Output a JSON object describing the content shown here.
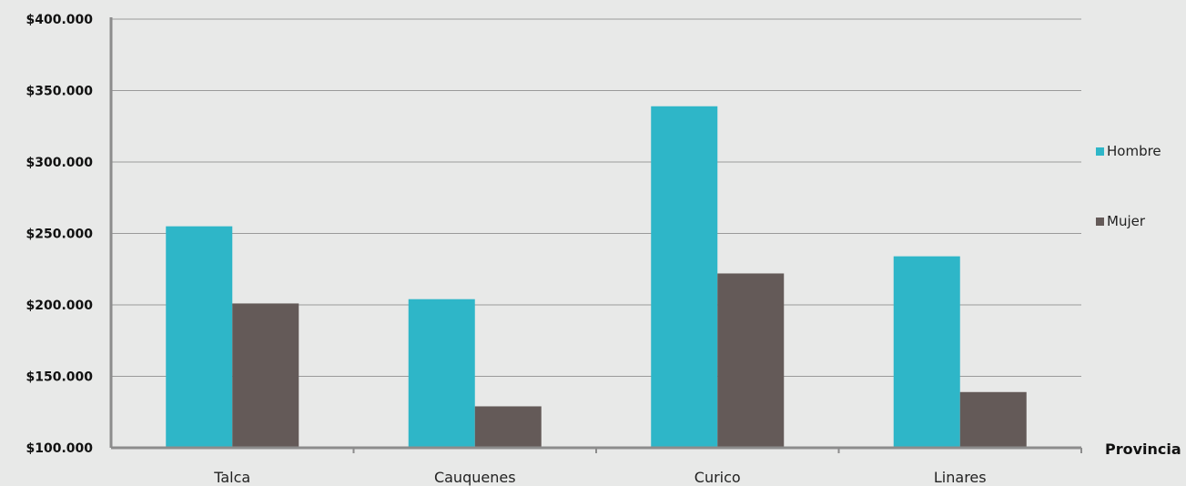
{
  "chart_data": {
    "type": "bar",
    "categories": [
      "Talca",
      "Cauquenes",
      "Curico",
      "Linares"
    ],
    "series": [
      {
        "name": "Hombre",
        "values": [
          255000,
          204000,
          339000,
          234000
        ],
        "color": "#2eb6c8"
      },
      {
        "name": "Mujer",
        "values": [
          201000,
          129000,
          222000,
          139000
        ],
        "color": "#645a58"
      }
    ],
    "ylim": [
      100000,
      400000
    ],
    "yticks": [
      100000,
      150000,
      200000,
      250000,
      300000,
      350000,
      400000
    ],
    "ytick_labels": [
      "$100.000",
      "$150.000",
      "$200.000",
      "$250.000",
      "$300.000",
      "$350.000",
      "$400.000"
    ],
    "xlabel": "Provincia",
    "ylabel": "",
    "title": "",
    "grid": true,
    "legend": "right"
  }
}
